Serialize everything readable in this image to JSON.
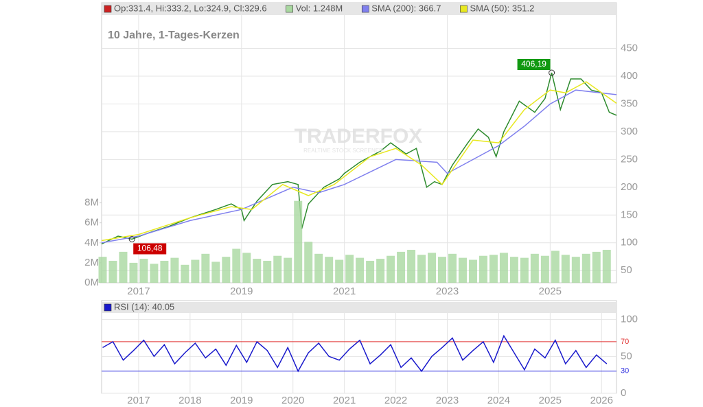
{
  "chart_data": [
    {
      "type": "line",
      "subtitle": "10 Jahre, 1-Tages-Kerzen",
      "watermark": "TRADERFOX",
      "watermark_sub": "REALTIME STOCK SCREENER",
      "xlim": [
        2016.28,
        2026.29
      ],
      "xticks": [
        2017,
        2019,
        2021,
        2023,
        2025
      ],
      "ylim": [
        28,
        510
      ],
      "yticks": [
        50,
        100,
        150,
        200,
        250,
        300,
        350,
        400,
        450
      ],
      "y2lim": [
        0,
        26.8
      ],
      "y2ticks": [
        {
          "value": 0,
          "label": "0M"
        },
        {
          "value": 2,
          "label": "2M"
        },
        {
          "value": 4,
          "label": "4M"
        },
        {
          "value": 6,
          "label": "6M"
        },
        {
          "value": 8,
          "label": "8M"
        }
      ],
      "grid": true,
      "series": [
        {
          "name": "Op:331.4, Hi:333.2, Lo:324.9, Cl:329.6",
          "color": "#cc2222",
          "line_color": "#2e8b2e",
          "x": [
            2016.28,
            2016.6,
            2016.87,
            2017.2,
            2017.6,
            2018.0,
            2018.5,
            2018.8,
            2019.0,
            2019.05,
            2019.3,
            2019.6,
            2019.9,
            2020.1,
            2020.17,
            2020.3,
            2020.6,
            2020.9,
            2021.0,
            2021.3,
            2021.7,
            2021.9,
            2022.2,
            2022.4,
            2022.6,
            2022.75,
            2022.9,
            2023.1,
            2023.4,
            2023.6,
            2023.8,
            2023.95,
            2024.1,
            2024.4,
            2024.7,
            2024.9,
            2025.03,
            2025.2,
            2025.4,
            2025.6,
            2025.8,
            2026.0,
            2026.15,
            2026.29
          ],
          "values": [
            98,
            112,
            106.48,
            118,
            130,
            145,
            160,
            170,
            160,
            140,
            175,
            205,
            210,
            205,
            125,
            170,
            200,
            215,
            225,
            245,
            265,
            280,
            260,
            270,
            200,
            210,
            205,
            240,
            280,
            305,
            290,
            255,
            300,
            355,
            335,
            360,
            406.19,
            340,
            395,
            395,
            375,
            370,
            335,
            329.6
          ]
        },
        {
          "name": "Vol: 1.248M",
          "color": "#a9d8a0",
          "axis": "y2",
          "type": "bar",
          "x": [
            2016.3,
            2016.5,
            2016.7,
            2016.9,
            2017.1,
            2017.3,
            2017.5,
            2017.7,
            2017.9,
            2018.1,
            2018.3,
            2018.5,
            2018.7,
            2018.9,
            2019.1,
            2019.3,
            2019.5,
            2019.7,
            2019.9,
            2020.1,
            2020.3,
            2020.5,
            2020.7,
            2020.9,
            2021.1,
            2021.3,
            2021.5,
            2021.7,
            2021.9,
            2022.1,
            2022.3,
            2022.5,
            2022.7,
            2022.9,
            2023.1,
            2023.3,
            2023.5,
            2023.7,
            2023.9,
            2024.1,
            2024.3,
            2024.5,
            2024.7,
            2024.9,
            2025.1,
            2025.3,
            2025.5,
            2025.7,
            2025.9,
            2026.1
          ],
          "values": [
            2.6,
            2.2,
            3.1,
            2.0,
            2.4,
            1.9,
            2.2,
            2.5,
            1.8,
            2.3,
            2.9,
            2.1,
            2.6,
            3.4,
            3.0,
            2.4,
            2.2,
            2.7,
            2.5,
            8.2,
            4.1,
            2.9,
            2.6,
            2.3,
            2.8,
            2.5,
            2.2,
            2.4,
            2.7,
            3.1,
            3.3,
            2.8,
            3.0,
            2.6,
            2.9,
            2.5,
            2.3,
            2.7,
            2.8,
            3.0,
            2.6,
            2.5,
            2.9,
            2.7,
            3.2,
            2.8,
            2.6,
            2.9,
            3.1,
            3.3
          ]
        },
        {
          "name": "SMA (200): 366.7",
          "color": "#8080ee",
          "x": [
            2016.28,
            2017.0,
            2018.0,
            2019.0,
            2020.0,
            2020.5,
            2021.0,
            2022.0,
            2022.8,
            2023.0,
            2023.5,
            2024.0,
            2024.5,
            2025.0,
            2025.5,
            2026.29
          ],
          "values": [
            100,
            112,
            140,
            160,
            200,
            190,
            205,
            250,
            245,
            225,
            250,
            275,
            310,
            350,
            375,
            366.7
          ]
        },
        {
          "name": "SMA (50): 351.2",
          "color": "#e8e820",
          "x": [
            2016.28,
            2017.0,
            2018.0,
            2018.8,
            2019.2,
            2019.8,
            2020.3,
            2020.8,
            2021.5,
            2022.0,
            2022.5,
            2022.9,
            2023.5,
            2024.0,
            2024.5,
            2025.0,
            2025.3,
            2025.7,
            2026.29
          ],
          "values": [
            104,
            115,
            145,
            165,
            160,
            205,
            185,
            205,
            255,
            270,
            240,
            205,
            285,
            280,
            340,
            375,
            370,
            390,
            351.2
          ]
        }
      ],
      "annotations": [
        {
          "x": 2025.03,
          "value": 406.19,
          "label": "406,19",
          "color": "#119911"
        },
        {
          "x": 2016.87,
          "value": 106.48,
          "label": "106,48",
          "color": "#cc0000"
        }
      ]
    },
    {
      "type": "line",
      "xlim": [
        2016.28,
        2026.29
      ],
      "xticks": [
        2017,
        2018,
        2019,
        2020,
        2021,
        2022,
        2023,
        2024,
        2025,
        2026
      ],
      "ylim": [
        0,
        109
      ],
      "yticks": [
        0,
        50,
        100
      ],
      "grid": true,
      "levels": [
        {
          "value": 70,
          "color": "#e03030"
        },
        {
          "value": 30,
          "color": "#3030e0"
        }
      ],
      "series": [
        {
          "name": "RSI (14): 40.05",
          "color": "#1a1acc",
          "x": [
            2016.3,
            2016.5,
            2016.7,
            2016.9,
            2017.1,
            2017.3,
            2017.5,
            2017.7,
            2017.9,
            2018.1,
            2018.3,
            2018.5,
            2018.7,
            2018.9,
            2019.1,
            2019.3,
            2019.5,
            2019.7,
            2019.9,
            2020.1,
            2020.3,
            2020.5,
            2020.7,
            2020.9,
            2021.1,
            2021.3,
            2021.5,
            2021.7,
            2021.9,
            2022.1,
            2022.3,
            2022.5,
            2022.7,
            2022.9,
            2023.1,
            2023.3,
            2023.5,
            2023.7,
            2023.9,
            2024.1,
            2024.3,
            2024.5,
            2024.7,
            2024.9,
            2025.1,
            2025.3,
            2025.5,
            2025.7,
            2025.9,
            2026.1
          ],
          "values": [
            62,
            70,
            45,
            58,
            72,
            50,
            66,
            40,
            55,
            68,
            48,
            60,
            38,
            65,
            42,
            70,
            58,
            35,
            62,
            30,
            55,
            68,
            50,
            45,
            60,
            72,
            40,
            52,
            66,
            35,
            48,
            30,
            50,
            62,
            75,
            45,
            58,
            70,
            42,
            78,
            55,
            32,
            60,
            48,
            72,
            40,
            58,
            35,
            52,
            40
          ]
        }
      ]
    }
  ]
}
